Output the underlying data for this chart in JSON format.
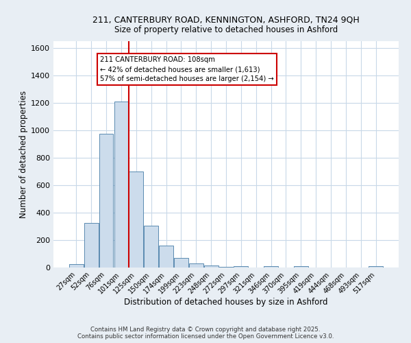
{
  "title_line1": "211, CANTERBURY ROAD, KENNINGTON, ASHFORD, TN24 9QH",
  "title_line2": "Size of property relative to detached houses in Ashford",
  "xlabel": "Distribution of detached houses by size in Ashford",
  "ylabel": "Number of detached properties",
  "categories": [
    "27sqm",
    "52sqm",
    "76sqm",
    "101sqm",
    "125sqm",
    "150sqm",
    "174sqm",
    "199sqm",
    "223sqm",
    "248sqm",
    "272sqm",
    "297sqm",
    "321sqm",
    "346sqm",
    "370sqm",
    "395sqm",
    "419sqm",
    "444sqm",
    "468sqm",
    "493sqm",
    "517sqm"
  ],
  "values": [
    25,
    325,
    975,
    1210,
    700,
    305,
    158,
    70,
    30,
    14,
    5,
    8,
    0,
    8,
    0,
    12,
    0,
    0,
    0,
    0,
    10
  ],
  "bar_color": "#ccdcec",
  "bar_edge_color": "#5a8ab0",
  "vline_index": 3,
  "vline_color": "#cc0000",
  "annotation_text": "211 CANTERBURY ROAD: 108sqm\n← 42% of detached houses are smaller (1,613)\n57% of semi-detached houses are larger (2,154) →",
  "annotation_box_facecolor": "#ffffff",
  "annotation_box_edgecolor": "#cc0000",
  "ylim": [
    0,
    1650
  ],
  "yticks": [
    0,
    200,
    400,
    600,
    800,
    1000,
    1200,
    1400,
    1600
  ],
  "footnote1": "Contains HM Land Registry data © Crown copyright and database right 2025.",
  "footnote2": "Contains public sector information licensed under the Open Government Licence v3.0.",
  "bg_color": "#e8eef4",
  "plot_bg_color": "#ffffff",
  "grid_color": "#c8d8e8"
}
